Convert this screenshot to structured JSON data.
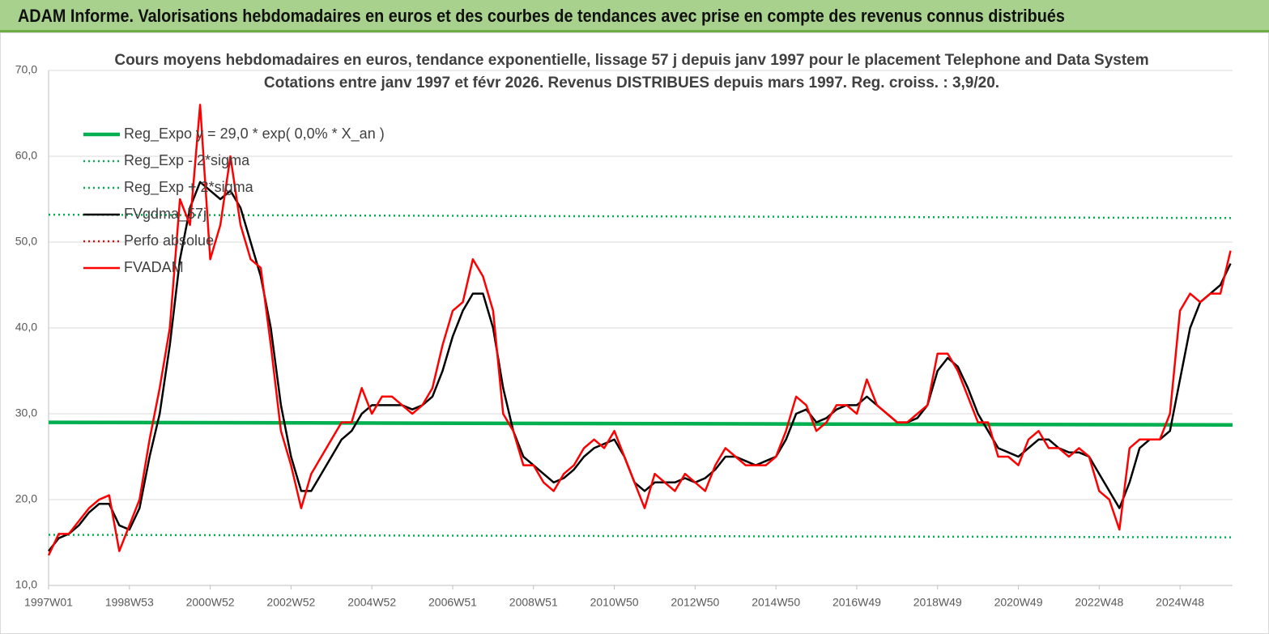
{
  "header": {
    "title": "ADAM Informe. Valorisations hebdomadaires en euros et des courbes de tendances avec prise en compte des revenus connus distribués"
  },
  "chart_data": {
    "type": "line",
    "title": "Cours moyens hebdomadaires en euros, tendance exponentielle, lissage 57 j depuis janv 1997  pour le placement Telephone and Data System",
    "subtitle": "Cotations entre janv 1997 et févr 2026. Revenus DISTRIBUES depuis mars 1997. Reg. croiss. : 3,9/20.",
    "xlim": [
      1997.0,
      2026.3
    ],
    "xticks": [
      {
        "value": 1997.0,
        "label": "1997W01"
      },
      {
        "value": 1999.0,
        "label": "1998W53"
      },
      {
        "value": 2001.0,
        "label": "2000W52"
      },
      {
        "value": 2003.0,
        "label": "2002W52"
      },
      {
        "value": 2005.0,
        "label": "2004W52"
      },
      {
        "value": 2007.0,
        "label": "2006W51"
      },
      {
        "value": 2009.0,
        "label": "2008W51"
      },
      {
        "value": 2011.0,
        "label": "2010W50"
      },
      {
        "value": 2013.0,
        "label": "2012W50"
      },
      {
        "value": 2015.0,
        "label": "2014W50"
      },
      {
        "value": 2017.0,
        "label": "2016W49"
      },
      {
        "value": 2019.0,
        "label": "2018W49"
      },
      {
        "value": 2021.0,
        "label": "2020W49"
      },
      {
        "value": 2023.0,
        "label": "2022W48"
      },
      {
        "value": 2025.0,
        "label": "2024W48"
      }
    ],
    "ylim": [
      10,
      70
    ],
    "yticks": [
      {
        "value": 10,
        "label": "10,0"
      },
      {
        "value": 20,
        "label": "20,0"
      },
      {
        "value": 30,
        "label": "30,0"
      },
      {
        "value": 40,
        "label": "40,0"
      },
      {
        "value": 50,
        "label": "50,0"
      },
      {
        "value": 60,
        "label": "60,0"
      },
      {
        "value": 70,
        "label": "70,0"
      }
    ],
    "grid": true,
    "legend": "upper left",
    "series": [
      {
        "name": "Reg_Expo y = 29,0 * exp( 0,0% *  X_an )",
        "color": "#00b050",
        "style": "solid",
        "x": [
          1997.0,
          2026.3
        ],
        "values": [
          29.0,
          28.7
        ]
      },
      {
        "name": "Reg_Exp - 2*sigma",
        "color": "#00b050",
        "style": "dotted",
        "x": [
          1997.0,
          2026.3
        ],
        "values": [
          15.9,
          15.6
        ]
      },
      {
        "name": "Reg_Exp + 2*sigma",
        "color": "#00b050",
        "style": "dotted",
        "x": [
          1997.0,
          2026.3
        ],
        "values": [
          53.2,
          52.8
        ]
      },
      {
        "name": "FVgdma_57j",
        "color": "#000000",
        "style": "solid",
        "x": [
          1997.0,
          1997.25,
          1997.5,
          1997.75,
          1998.0,
          1998.25,
          1998.5,
          1998.75,
          1999.0,
          1999.25,
          1999.5,
          1999.75,
          2000.0,
          2000.25,
          2000.5,
          2000.75,
          2001.0,
          2001.25,
          2001.5,
          2001.75,
          2002.0,
          2002.25,
          2002.5,
          2002.75,
          2003.0,
          2003.25,
          2003.5,
          2003.75,
          2004.0,
          2004.25,
          2004.5,
          2004.75,
          2005.0,
          2005.25,
          2005.5,
          2005.75,
          2006.0,
          2006.25,
          2006.5,
          2006.75,
          2007.0,
          2007.25,
          2007.5,
          2007.75,
          2008.0,
          2008.25,
          2008.5,
          2008.75,
          2009.0,
          2009.25,
          2009.5,
          2009.75,
          2010.0,
          2010.25,
          2010.5,
          2010.75,
          2011.0,
          2011.25,
          2011.5,
          2011.75,
          2012.0,
          2012.25,
          2012.5,
          2012.75,
          2013.0,
          2013.25,
          2013.5,
          2013.75,
          2014.0,
          2014.25,
          2014.5,
          2014.75,
          2015.0,
          2015.25,
          2015.5,
          2015.75,
          2016.0,
          2016.25,
          2016.5,
          2016.75,
          2017.0,
          2017.25,
          2017.5,
          2017.75,
          2018.0,
          2018.25,
          2018.5,
          2018.75,
          2019.0,
          2019.25,
          2019.5,
          2019.75,
          2020.0,
          2020.25,
          2020.5,
          2020.75,
          2021.0,
          2021.25,
          2021.5,
          2021.75,
          2022.0,
          2022.25,
          2022.5,
          2022.75,
          2023.0,
          2023.25,
          2023.5,
          2023.75,
          2024.0,
          2024.25,
          2024.5,
          2024.75,
          2025.0,
          2025.25,
          2025.5,
          2025.75,
          2026.0,
          2026.25
        ],
        "values": [
          14,
          15.5,
          16,
          17,
          18.5,
          19.5,
          19.5,
          17,
          16.5,
          19,
          25,
          30,
          38,
          48,
          54,
          57,
          56,
          55,
          56,
          54,
          50,
          46,
          40,
          31,
          25,
          21,
          21,
          23,
          25,
          27,
          28,
          30,
          31,
          31,
          31,
          31,
          30.5,
          31,
          32,
          35,
          39,
          42,
          44,
          44,
          40,
          33,
          28,
          25,
          24,
          23,
          22,
          22.5,
          23.5,
          25,
          26,
          26.5,
          27,
          25,
          22,
          21,
          22,
          22,
          22,
          22.5,
          22,
          22.5,
          23.5,
          25,
          25,
          24.5,
          24,
          24.5,
          25,
          27,
          30,
          30.5,
          29,
          29.5,
          30.5,
          31,
          31,
          32,
          31,
          30,
          29,
          29,
          29.5,
          31,
          35,
          36.5,
          35.5,
          33,
          30,
          28,
          26,
          25.5,
          25,
          26,
          27,
          27,
          26,
          25.5,
          25.5,
          25,
          23,
          21,
          19,
          22,
          26,
          27,
          27,
          28,
          34,
          40,
          43,
          44,
          45,
          47.5
        ]
      },
      {
        "name": "Perfo absolue",
        "color": "#ff0000",
        "style": "dotted",
        "x": [],
        "values": []
      },
      {
        "name": "FVADAM",
        "color": "#ff0000",
        "style": "solid",
        "x": [
          1997.0,
          1997.25,
          1997.5,
          1997.75,
          1998.0,
          1998.25,
          1998.5,
          1998.75,
          1999.0,
          1999.25,
          1999.5,
          1999.75,
          2000.0,
          2000.25,
          2000.5,
          2000.75,
          2001.0,
          2001.25,
          2001.5,
          2001.75,
          2002.0,
          2002.25,
          2002.5,
          2002.75,
          2003.0,
          2003.25,
          2003.5,
          2003.75,
          2004.0,
          2004.25,
          2004.5,
          2004.75,
          2005.0,
          2005.25,
          2005.5,
          2005.75,
          2006.0,
          2006.25,
          2006.5,
          2006.75,
          2007.0,
          2007.25,
          2007.5,
          2007.75,
          2008.0,
          2008.25,
          2008.5,
          2008.75,
          2009.0,
          2009.25,
          2009.5,
          2009.75,
          2010.0,
          2010.25,
          2010.5,
          2010.75,
          2011.0,
          2011.25,
          2011.5,
          2011.75,
          2012.0,
          2012.25,
          2012.5,
          2012.75,
          2013.0,
          2013.25,
          2013.5,
          2013.75,
          2014.0,
          2014.25,
          2014.5,
          2014.75,
          2015.0,
          2015.25,
          2015.5,
          2015.75,
          2016.0,
          2016.25,
          2016.5,
          2016.75,
          2017.0,
          2017.25,
          2017.5,
          2017.75,
          2018.0,
          2018.25,
          2018.5,
          2018.75,
          2019.0,
          2019.25,
          2019.5,
          2019.75,
          2020.0,
          2020.25,
          2020.5,
          2020.75,
          2021.0,
          2021.25,
          2021.5,
          2021.75,
          2022.0,
          2022.25,
          2022.5,
          2022.75,
          2023.0,
          2023.25,
          2023.5,
          2023.75,
          2024.0,
          2024.25,
          2024.5,
          2024.75,
          2025.0,
          2025.25,
          2025.5,
          2025.75,
          2026.0,
          2026.25
        ],
        "values": [
          13.5,
          16,
          16,
          17.5,
          19,
          20,
          20.5,
          14,
          17,
          20,
          27,
          33,
          40,
          55,
          52,
          66,
          48,
          52,
          60,
          52,
          48,
          47,
          38,
          28,
          24,
          19,
          23,
          25,
          27,
          29,
          29,
          33,
          30,
          32,
          32,
          31,
          30,
          31,
          33,
          38,
          42,
          43,
          48,
          46,
          42,
          30,
          28,
          24,
          24,
          22,
          21,
          23,
          24,
          26,
          27,
          26,
          28,
          25,
          22,
          19,
          23,
          22,
          21,
          23,
          22,
          21,
          24,
          26,
          25,
          24,
          24,
          24,
          25,
          28,
          32,
          31,
          28,
          29,
          31,
          31,
          30,
          34,
          31,
          30,
          29,
          29,
          30,
          31,
          37,
          37,
          35,
          32,
          29,
          29,
          25,
          25,
          24,
          27,
          28,
          26,
          26,
          25,
          26,
          25,
          21,
          20,
          16.5,
          26,
          27,
          27,
          27,
          30,
          42,
          44,
          43,
          44,
          44,
          49
        ]
      }
    ]
  }
}
